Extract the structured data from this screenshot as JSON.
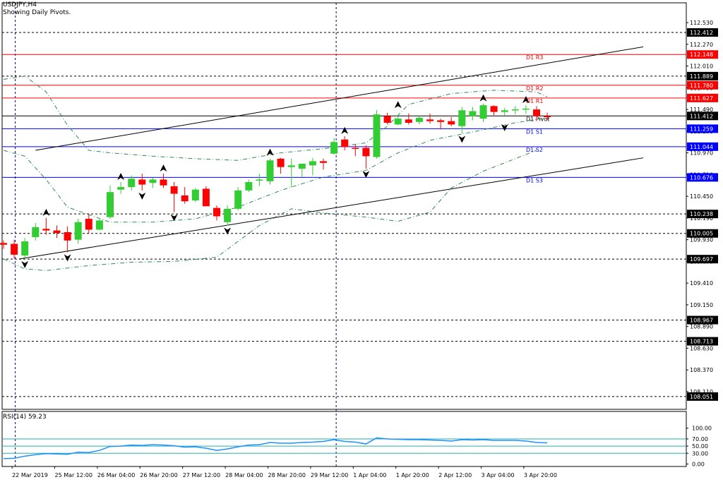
{
  "header": {
    "symbol": "USDJPY,H4",
    "note": "Showing Daily Pivots.",
    "rsi_label": "RSI(14) 59.23"
  },
  "colors": {
    "bull": "#32CD32",
    "bear": "#FF0000",
    "resistance": "#FF0000",
    "support": "#0000FF",
    "rsi": "#1E90FF",
    "rsi_levels": "#20B2AA"
  },
  "chart_data": [
    {
      "type": "candlestick",
      "symbol": "USDJPY",
      "timeframe": "H4",
      "y_ticks": [
        112.53,
        112.27,
        112.01,
        111.75,
        111.49,
        111.23,
        110.97,
        110.71,
        110.45,
        110.19,
        109.93,
        109.67,
        109.41,
        109.15,
        108.89,
        108.63,
        108.37,
        108.11
      ],
      "y_tick_labels": [
        "112.530",
        "112.270",
        "112.010",
        "111.750",
        "111.490",
        "111.230",
        "110.970",
        "110.710",
        "110.450",
        "110.190",
        "109.930",
        "109.670",
        "109.410",
        "109.150",
        "108.890",
        "108.630",
        "108.370",
        "108.110"
      ],
      "ylim": [
        108.0,
        112.67
      ],
      "x_labels": [
        "22 Mar 2019",
        "25 Mar 12:00",
        "26 Mar 04:00",
        "26 Mar 20:00",
        "27 Mar 12:00",
        "28 Mar 04:00",
        "28 Mar 20:00",
        "29 Mar 12:00",
        "1 Apr 04:00",
        "1 Apr 20:00",
        "2 Apr 12:00",
        "3 Apr 04:00",
        "3 Apr 20:00"
      ],
      "x_label_bars": [
        1,
        5,
        9,
        13,
        17,
        21,
        25,
        29,
        33,
        37,
        41,
        45,
        49
      ],
      "candles": [
        {
          "o": 109.89,
          "h": 109.92,
          "l": 109.82,
          "c": 109.87
        },
        {
          "o": 109.88,
          "h": 109.93,
          "l": 109.7,
          "c": 109.75
        },
        {
          "o": 109.74,
          "h": 109.95,
          "l": 109.7,
          "c": 109.91
        },
        {
          "o": 109.96,
          "h": 110.13,
          "l": 109.92,
          "c": 110.08
        },
        {
          "o": 110.06,
          "h": 110.19,
          "l": 109.99,
          "c": 110.04
        },
        {
          "o": 110.04,
          "h": 110.1,
          "l": 109.95,
          "c": 110.01
        },
        {
          "o": 110.02,
          "h": 110.09,
          "l": 109.78,
          "c": 109.92
        },
        {
          "o": 109.93,
          "h": 110.18,
          "l": 109.88,
          "c": 110.14
        },
        {
          "o": 110.18,
          "h": 110.24,
          "l": 110.0,
          "c": 110.05
        },
        {
          "o": 110.05,
          "h": 110.18,
          "l": 110.04,
          "c": 110.16
        },
        {
          "o": 110.2,
          "h": 110.58,
          "l": 110.18,
          "c": 110.5
        },
        {
          "o": 110.53,
          "h": 110.62,
          "l": 110.48,
          "c": 110.56
        },
        {
          "o": 110.56,
          "h": 110.7,
          "l": 110.52,
          "c": 110.66
        },
        {
          "o": 110.65,
          "h": 110.72,
          "l": 110.52,
          "c": 110.59
        },
        {
          "o": 110.61,
          "h": 110.67,
          "l": 110.55,
          "c": 110.65
        },
        {
          "o": 110.65,
          "h": 110.72,
          "l": 110.55,
          "c": 110.58
        },
        {
          "o": 110.57,
          "h": 110.62,
          "l": 110.26,
          "c": 110.48
        },
        {
          "o": 110.46,
          "h": 110.56,
          "l": 110.36,
          "c": 110.39
        },
        {
          "o": 110.4,
          "h": 110.55,
          "l": 110.38,
          "c": 110.53
        },
        {
          "o": 110.54,
          "h": 110.57,
          "l": 110.37,
          "c": 110.33
        },
        {
          "o": 110.31,
          "h": 110.34,
          "l": 110.16,
          "c": 110.21
        },
        {
          "o": 110.14,
          "h": 110.34,
          "l": 110.1,
          "c": 110.3
        },
        {
          "o": 110.3,
          "h": 110.56,
          "l": 110.28,
          "c": 110.52
        },
        {
          "o": 110.52,
          "h": 110.65,
          "l": 110.5,
          "c": 110.62
        },
        {
          "o": 110.64,
          "h": 110.72,
          "l": 110.57,
          "c": 110.65
        },
        {
          "o": 110.63,
          "h": 110.9,
          "l": 110.59,
          "c": 110.88
        },
        {
          "o": 110.9,
          "h": 110.91,
          "l": 110.72,
          "c": 110.8
        },
        {
          "o": 110.8,
          "h": 110.9,
          "l": 110.56,
          "c": 110.82
        },
        {
          "o": 110.78,
          "h": 110.84,
          "l": 110.68,
          "c": 110.84
        },
        {
          "o": 110.82,
          "h": 110.91,
          "l": 110.7,
          "c": 110.87
        },
        {
          "o": 110.87,
          "h": 110.9,
          "l": 110.77,
          "c": 110.85
        },
        {
          "o": 110.96,
          "h": 111.15,
          "l": 110.95,
          "c": 111.1
        },
        {
          "o": 111.13,
          "h": 111.17,
          "l": 111.0,
          "c": 111.04
        },
        {
          "o": 111.03,
          "h": 111.07,
          "l": 110.93,
          "c": 111.02
        },
        {
          "o": 111.03,
          "h": 111.06,
          "l": 110.78,
          "c": 110.93
        },
        {
          "o": 110.92,
          "h": 111.48,
          "l": 110.9,
          "c": 111.43
        },
        {
          "o": 111.41,
          "h": 111.45,
          "l": 111.31,
          "c": 111.33
        },
        {
          "o": 111.31,
          "h": 111.41,
          "l": 111.3,
          "c": 111.38
        },
        {
          "o": 111.37,
          "h": 111.44,
          "l": 111.31,
          "c": 111.33
        },
        {
          "o": 111.34,
          "h": 111.41,
          "l": 111.31,
          "c": 111.39
        },
        {
          "o": 111.37,
          "h": 111.44,
          "l": 111.32,
          "c": 111.35
        },
        {
          "o": 111.36,
          "h": 111.38,
          "l": 111.25,
          "c": 111.34
        },
        {
          "o": 111.35,
          "h": 111.4,
          "l": 111.29,
          "c": 111.31
        },
        {
          "o": 111.29,
          "h": 111.52,
          "l": 111.2,
          "c": 111.48
        },
        {
          "o": 111.41,
          "h": 111.52,
          "l": 111.36,
          "c": 111.47
        },
        {
          "o": 111.38,
          "h": 111.56,
          "l": 111.34,
          "c": 111.54
        },
        {
          "o": 111.53,
          "h": 111.54,
          "l": 111.42,
          "c": 111.46
        },
        {
          "o": 111.46,
          "h": 111.51,
          "l": 111.42,
          "c": 111.48
        },
        {
          "o": 111.48,
          "h": 111.53,
          "l": 111.43,
          "c": 111.49
        },
        {
          "o": 111.49,
          "h": 111.54,
          "l": 111.44,
          "c": 111.5
        },
        {
          "o": 111.49,
          "h": 111.53,
          "l": 111.35,
          "c": 111.41
        },
        {
          "o": 111.41,
          "h": 111.45,
          "l": 111.36,
          "c": 111.4
        }
      ],
      "pivot_levels": [
        {
          "name": "D1 R3",
          "value": 112.148,
          "label": "112.148",
          "kind": "resistance"
        },
        {
          "name": "D1 R2",
          "value": 111.78,
          "label": "111.780",
          "kind": "resistance"
        },
        {
          "name": "D1 R1",
          "value": 111.627,
          "label": "111.627",
          "kind": "resistance"
        },
        {
          "name": "D1 Pivot",
          "value": 111.412,
          "label": "111.412",
          "kind": "pivot"
        },
        {
          "name": "D1 S1",
          "value": 111.259,
          "label": "111.259",
          "kind": "support"
        },
        {
          "name": "D1 S2",
          "value": 111.044,
          "label": "111.044",
          "kind": "support"
        },
        {
          "name": "D1 S3",
          "value": 110.676,
          "label": "110.676",
          "kind": "support"
        }
      ],
      "dotted_levels": [
        {
          "value": 112.412,
          "label": "112.412"
        },
        {
          "value": 111.889,
          "label": "111.889"
        },
        {
          "value": 110.238,
          "label": "110.238"
        },
        {
          "value": 110.005,
          "label": "110.005"
        },
        {
          "value": 109.697,
          "label": "109.697"
        },
        {
          "value": 108.967,
          "label": "108.967"
        },
        {
          "value": 108.713,
          "label": "108.713"
        },
        {
          "value": 108.051,
          "label": "108.051"
        }
      ],
      "trend_lines": [
        {
          "from": {
            "bar": 3,
            "price": 111.0
          },
          "to": {
            "bar": 60,
            "price": 112.24
          }
        },
        {
          "from": {
            "bar": 1.5,
            "price": 109.7
          },
          "to": {
            "bar": 60,
            "price": 110.91
          }
        }
      ],
      "bollinger": {
        "upper": [
          [
            0,
            111.85
          ],
          [
            2,
            111.89
          ],
          [
            4,
            111.7
          ],
          [
            6,
            111.3
          ],
          [
            8,
            111.0
          ],
          [
            10,
            110.97
          ],
          [
            14,
            110.93
          ],
          [
            18,
            110.9
          ],
          [
            22,
            110.88
          ],
          [
            26,
            110.97
          ],
          [
            30,
            111.02
          ],
          [
            34,
            111.09
          ],
          [
            36,
            111.29
          ],
          [
            38,
            111.55
          ],
          [
            42,
            111.68
          ],
          [
            46,
            111.72
          ],
          [
            50,
            111.7
          ],
          [
            51,
            111.64
          ]
        ],
        "middle": [
          [
            0,
            111.0
          ],
          [
            2,
            110.93
          ],
          [
            4,
            110.65
          ],
          [
            6,
            110.32
          ],
          [
            10,
            110.14
          ],
          [
            14,
            110.14
          ],
          [
            18,
            110.18
          ],
          [
            22,
            110.32
          ],
          [
            26,
            110.52
          ],
          [
            30,
            110.68
          ],
          [
            34,
            110.76
          ],
          [
            37,
            110.97
          ],
          [
            40,
            111.12
          ],
          [
            44,
            111.22
          ],
          [
            48,
            111.33
          ],
          [
            51,
            111.39
          ]
        ],
        "lower": [
          [
            0,
            109.7
          ],
          [
            2,
            109.58
          ],
          [
            4,
            109.56
          ],
          [
            8,
            109.62
          ],
          [
            12,
            109.66
          ],
          [
            16,
            109.67
          ],
          [
            20,
            109.72
          ],
          [
            24,
            110.1
          ],
          [
            27,
            110.3
          ],
          [
            30,
            110.25
          ],
          [
            34,
            110.2
          ],
          [
            37,
            110.15
          ],
          [
            40,
            110.26
          ],
          [
            42,
            110.55
          ],
          [
            45,
            110.75
          ],
          [
            48,
            110.9
          ],
          [
            50,
            111.0
          ]
        ]
      },
      "fractals_up": [
        {
          "bar": 4,
          "price": 110.19
        },
        {
          "bar": 11,
          "price": 110.62
        },
        {
          "bar": 15,
          "price": 110.72
        },
        {
          "bar": 25,
          "price": 110.91
        },
        {
          "bar": 32,
          "price": 111.17
        },
        {
          "bar": 37,
          "price": 111.48
        },
        {
          "bar": 45,
          "price": 111.56
        },
        {
          "bar": 49,
          "price": 111.54
        }
      ],
      "fractals_down": [
        {
          "bar": 2,
          "price": 109.7
        },
        {
          "bar": 6,
          "price": 109.78
        },
        {
          "bar": 13,
          "price": 110.52
        },
        {
          "bar": 16,
          "price": 110.26
        },
        {
          "bar": 21,
          "price": 110.1
        },
        {
          "bar": 34,
          "price": 110.78
        },
        {
          "bar": 43,
          "price": 111.2
        },
        {
          "bar": 47,
          "price": 111.34
        }
      ],
      "vertical_markers": [
        {
          "bar": 1.1,
          "style": "dashed"
        },
        {
          "bar": 31.2,
          "style": "dashed"
        }
      ]
    },
    {
      "type": "line",
      "indicator": "RSI(14)",
      "value": 59.23,
      "y_ticks": [
        100,
        70,
        50,
        30,
        0
      ],
      "y_tick_labels": [
        "100.00",
        "70.00",
        "50.00",
        "30.00",
        "0.00"
      ],
      "levels": [
        70,
        50,
        30
      ],
      "ylim": [
        0,
        100
      ],
      "values": [
        [
          0,
          15
        ],
        [
          1,
          16
        ],
        [
          2,
          22
        ],
        [
          3,
          26
        ],
        [
          4,
          29
        ],
        [
          5,
          28
        ],
        [
          6,
          27
        ],
        [
          7,
          33
        ],
        [
          8,
          32
        ],
        [
          9,
          38
        ],
        [
          10,
          49
        ],
        [
          11,
          50
        ],
        [
          12,
          53
        ],
        [
          13,
          52
        ],
        [
          14,
          54
        ],
        [
          15,
          53
        ],
        [
          16,
          51
        ],
        [
          17,
          47
        ],
        [
          18,
          48
        ],
        [
          19,
          44
        ],
        [
          20,
          38
        ],
        [
          21,
          42
        ],
        [
          22,
          48
        ],
        [
          23,
          53
        ],
        [
          24,
          54
        ],
        [
          25,
          60
        ],
        [
          26,
          58
        ],
        [
          27,
          58
        ],
        [
          28,
          60
        ],
        [
          29,
          61
        ],
        [
          30,
          63
        ],
        [
          31,
          68
        ],
        [
          32,
          63
        ],
        [
          33,
          61
        ],
        [
          34,
          56
        ],
        [
          35,
          73
        ],
        [
          36,
          70
        ],
        [
          37,
          69
        ],
        [
          38,
          68
        ],
        [
          39,
          68
        ],
        [
          40,
          67
        ],
        [
          41,
          66
        ],
        [
          42,
          64
        ],
        [
          43,
          68
        ],
        [
          44,
          67
        ],
        [
          45,
          68
        ],
        [
          46,
          66
        ],
        [
          47,
          66
        ],
        [
          48,
          66
        ],
        [
          49,
          64
        ],
        [
          50,
          60
        ],
        [
          51,
          59
        ]
      ]
    }
  ]
}
